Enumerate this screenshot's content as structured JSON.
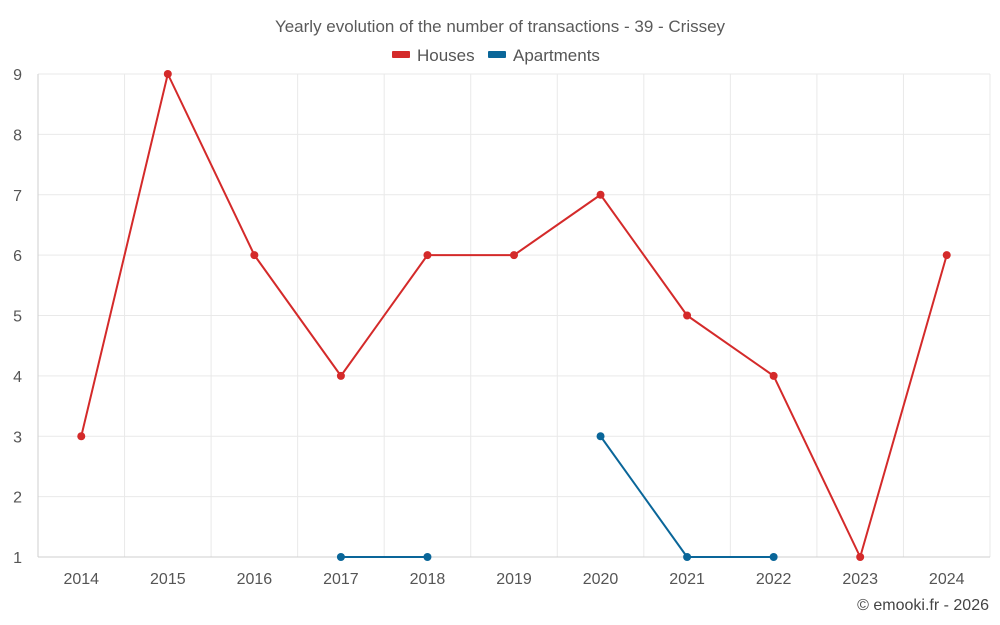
{
  "chart_data": {
    "type": "line",
    "title": "Yearly evolution of the number of transactions - 39 - Crissey",
    "categories": [
      "2014",
      "2015",
      "2016",
      "2017",
      "2018",
      "2019",
      "2020",
      "2021",
      "2022",
      "2023",
      "2024"
    ],
    "series": [
      {
        "name": "Houses",
        "color": "#d42a2a",
        "values": [
          3,
          9,
          6,
          4,
          6,
          6,
          7,
          5,
          4,
          1,
          6
        ]
      },
      {
        "name": "Apartments",
        "color": "#0a6699",
        "values": [
          null,
          null,
          null,
          1,
          1,
          null,
          3,
          1,
          1,
          null,
          null
        ]
      }
    ],
    "ylim": [
      1,
      9
    ],
    "yticks": [
      1,
      2,
      3,
      4,
      5,
      6,
      7,
      8,
      9
    ],
    "xlabel": "",
    "ylabel": "",
    "grid": true,
    "legend": "top-center"
  },
  "credit": "© emooki.fr - 2026"
}
